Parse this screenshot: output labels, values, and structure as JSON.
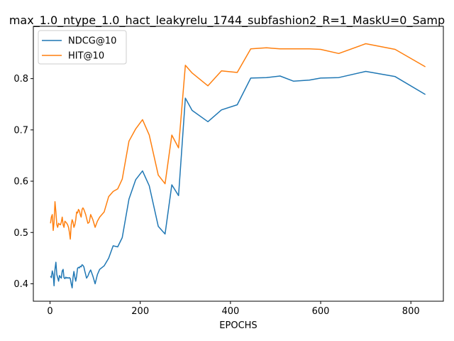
{
  "chart_data": {
    "type": "line",
    "title": "max_1.0_ntype_1.0_hact_leakyrelu_1744_subfashion2_R=1_MaskU=0_Samp",
    "xlabel": "EPOCHS",
    "ylabel": "",
    "xlim": [
      -37,
      872
    ],
    "ylim": [
      0.366,
      0.902
    ],
    "xticks": [
      0,
      200,
      400,
      600,
      800
    ],
    "yticks": [
      0.4,
      0.5,
      0.6,
      0.7,
      0.8
    ],
    "grid": false,
    "legend_position": "top-left",
    "series": [
      {
        "name": "NDCG@10",
        "color": "#1f77b4",
        "x": [
          1,
          3,
          5,
          7,
          9,
          11,
          13,
          15,
          17,
          19,
          21,
          23,
          25,
          27,
          29,
          31,
          33,
          35,
          37,
          39,
          41,
          43,
          45,
          47,
          49,
          51,
          53,
          55,
          57,
          59,
          61,
          63,
          65,
          67,
          69,
          71,
          73,
          75,
          77,
          79,
          81,
          84,
          87,
          90,
          95,
          100,
          105,
          110,
          120,
          130,
          140,
          150,
          160,
          175,
          190,
          205,
          220,
          240,
          255,
          270,
          285,
          300,
          315,
          350,
          380,
          415,
          445,
          480,
          510,
          540,
          575,
          600,
          640,
          700,
          765,
          832
        ],
        "y": [
          0.415,
          0.412,
          0.425,
          0.418,
          0.396,
          0.428,
          0.442,
          0.418,
          0.412,
          0.405,
          0.416,
          0.413,
          0.411,
          0.425,
          0.428,
          0.412,
          0.41,
          0.413,
          0.411,
          0.412,
          0.411,
          0.412,
          0.41,
          0.4,
          0.392,
          0.413,
          0.424,
          0.413,
          0.405,
          0.415,
          0.43,
          0.432,
          0.431,
          0.434,
          0.433,
          0.437,
          0.436,
          0.433,
          0.425,
          0.418,
          0.411,
          0.415,
          0.422,
          0.427,
          0.415,
          0.4,
          0.418,
          0.428,
          0.435,
          0.45,
          0.474,
          0.472,
          0.49,
          0.565,
          0.603,
          0.62,
          0.591,
          0.512,
          0.497,
          0.593,
          0.572,
          0.762,
          0.738,
          0.716,
          0.739,
          0.749,
          0.801,
          0.802,
          0.805,
          0.795,
          0.797,
          0.801,
          0.802,
          0.814,
          0.804,
          0.769
        ]
      },
      {
        "name": "HIT@10",
        "color": "#ff7f0e",
        "x": [
          1,
          3,
          5,
          7,
          9,
          11,
          13,
          15,
          17,
          19,
          21,
          23,
          25,
          27,
          29,
          31,
          33,
          35,
          37,
          39,
          41,
          43,
          45,
          47,
          49,
          51,
          53,
          55,
          57,
          59,
          61,
          63,
          65,
          67,
          69,
          71,
          73,
          75,
          77,
          79,
          81,
          84,
          87,
          90,
          95,
          100,
          105,
          110,
          120,
          130,
          140,
          150,
          160,
          175,
          190,
          205,
          220,
          240,
          255,
          270,
          285,
          300,
          315,
          350,
          380,
          415,
          445,
          480,
          510,
          540,
          575,
          600,
          640,
          700,
          765,
          832
        ],
        "y": [
          0.518,
          0.53,
          0.535,
          0.504,
          0.52,
          0.56,
          0.54,
          0.515,
          0.51,
          0.518,
          0.516,
          0.515,
          0.52,
          0.53,
          0.515,
          0.51,
          0.522,
          0.52,
          0.518,
          0.515,
          0.51,
          0.5,
          0.487,
          0.515,
          0.525,
          0.52,
          0.51,
          0.515,
          0.525,
          0.54,
          0.538,
          0.545,
          0.542,
          0.535,
          0.53,
          0.545,
          0.548,
          0.545,
          0.54,
          0.535,
          0.528,
          0.518,
          0.52,
          0.535,
          0.525,
          0.51,
          0.522,
          0.53,
          0.54,
          0.57,
          0.58,
          0.585,
          0.604,
          0.678,
          0.702,
          0.72,
          0.69,
          0.612,
          0.595,
          0.69,
          0.665,
          0.826,
          0.811,
          0.786,
          0.815,
          0.812,
          0.858,
          0.86,
          0.858,
          0.858,
          0.858,
          0.857,
          0.849,
          0.868,
          0.857,
          0.823
        ]
      }
    ]
  }
}
